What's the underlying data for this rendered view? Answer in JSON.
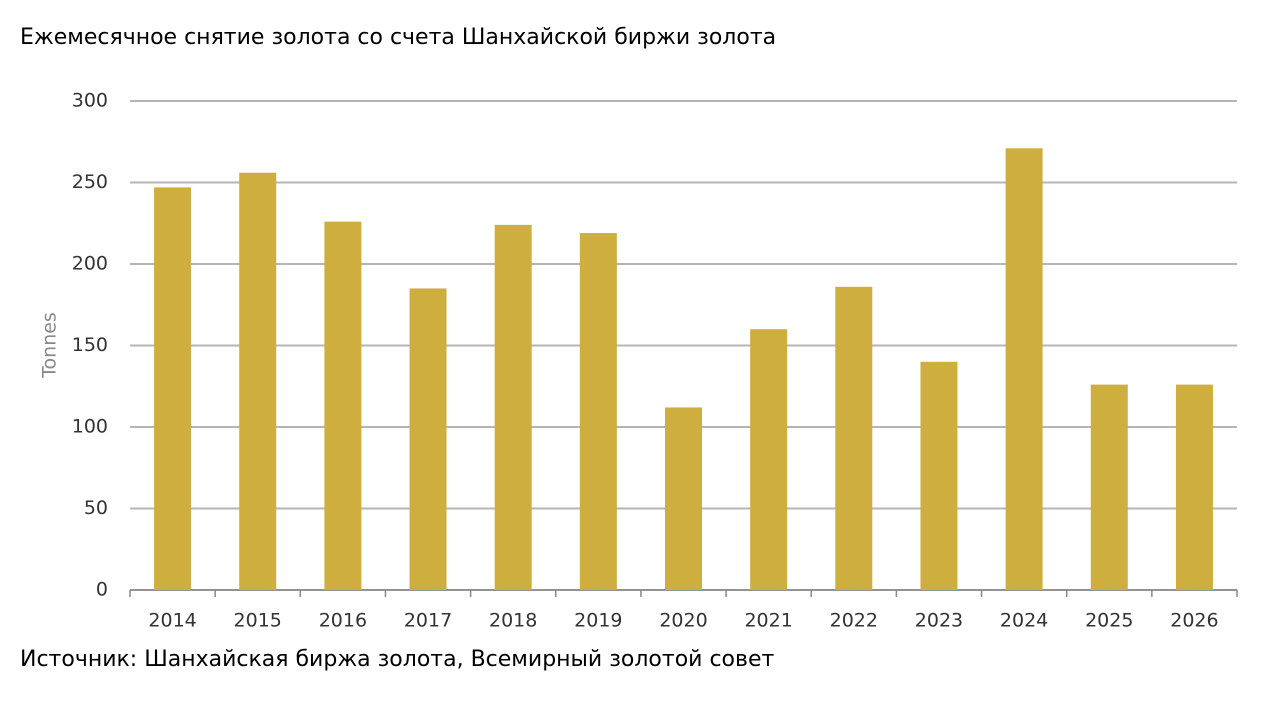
{
  "chart_data": {
    "type": "bar",
    "title": "Ежемесячное снятие золота со счета Шанхайской биржи золота",
    "y_label": "Tonnes",
    "source": "Источник: Шанхайская биржа золота, Всемирный золотой совет",
    "categories": [
      "2014",
      "2015",
      "2016",
      "2017",
      "2018",
      "2019",
      "2020",
      "2021",
      "2022",
      "2023",
      "2024",
      "2025",
      "2026"
    ],
    "values": [
      247,
      256,
      226,
      185,
      224,
      219,
      112,
      160,
      186,
      140,
      271,
      126,
      126
    ],
    "color": "#cdae3e",
    "ylim": [
      0,
      300
    ],
    "yticks": [
      0,
      50,
      100,
      150,
      200,
      250,
      300
    ],
    "grid": true
  }
}
